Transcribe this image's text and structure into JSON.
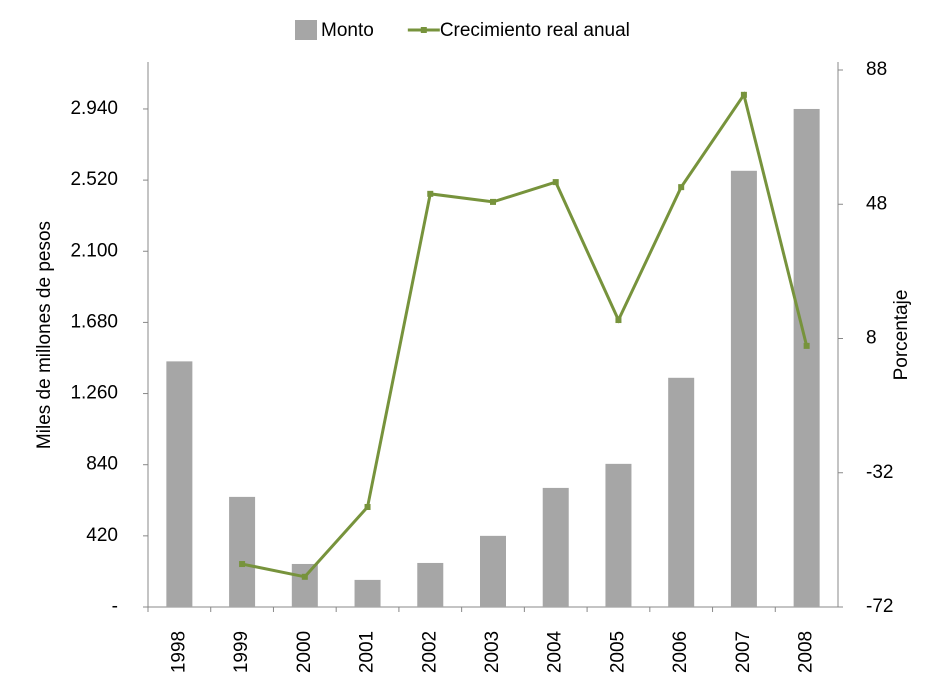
{
  "chart_data": {
    "type": "bar_line",
    "categories": [
      "1998",
      "1999",
      "2000",
      "2001",
      "2002",
      "2003",
      "2004",
      "2005",
      "2006",
      "2007",
      "2008"
    ],
    "series": [
      {
        "name": "Monto",
        "type": "bar",
        "color": "#a6a6a6",
        "axis": "y",
        "values": [
          1450,
          650,
          254,
          160,
          260,
          420,
          703,
          845,
          1353,
          2575,
          2940
        ]
      },
      {
        "name": "Crecimiento real anual",
        "type": "line",
        "color": "#77933c",
        "axis": "y2",
        "values": [
          null,
          -59.2,
          -63,
          -42.2,
          51.1,
          48.7,
          54.6,
          13.5,
          53.1,
          80.6,
          5.8
        ]
      }
    ],
    "ylabel": "Miles de millones de pesos",
    "y2label": "Porcentaje",
    "ylim": [
      0,
      3170
    ],
    "yticks": [
      {
        "value": 0,
        "label": "-"
      },
      420,
      840,
      {
        "value": 1260,
        "label": "1.260"
      },
      {
        "value": 1680,
        "label": "1.680"
      },
      {
        "value": 2100,
        "label": "2.100"
      },
      {
        "value": 2520,
        "label": "2.520"
      },
      {
        "value": 2940,
        "label": "2.940"
      }
    ],
    "y2lim": [
      -72,
      88
    ],
    "y2ticks": [
      -72,
      -32,
      8,
      48,
      88
    ],
    "legend": "top"
  }
}
